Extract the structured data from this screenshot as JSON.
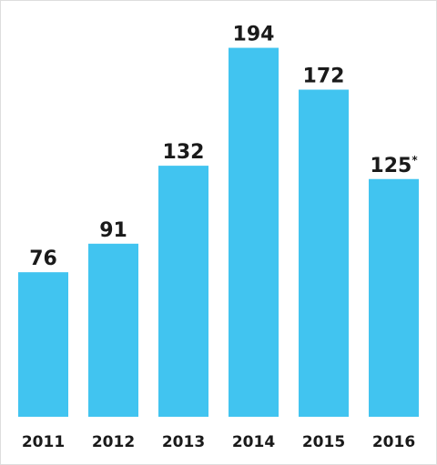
{
  "chart_data": {
    "type": "bar",
    "categories": [
      "2011",
      "2012",
      "2013",
      "2014",
      "2015",
      "2016"
    ],
    "values": [
      76,
      91,
      132,
      194,
      172,
      125
    ],
    "value_labels": [
      "76",
      "91",
      "132",
      "194",
      "172",
      "125*"
    ],
    "color": "#41c4f0"
  }
}
